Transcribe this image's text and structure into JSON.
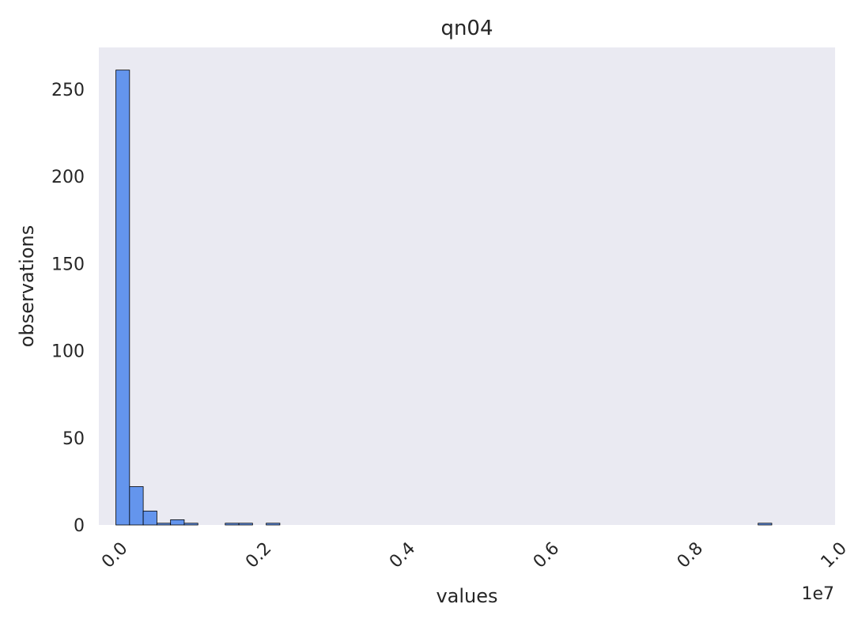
{
  "chart_data": {
    "type": "bar",
    "title": "qn04",
    "xlabel": "values",
    "ylabel": "observations",
    "x_offset_label": "1e7",
    "xlim": [
      -0.0237,
      1.0
    ],
    "ylim": [
      0,
      274
    ],
    "x_ticks": [
      0.0,
      0.2,
      0.4,
      0.6,
      0.8,
      1.0
    ],
    "x_tick_labels": [
      "0.0",
      "0.2",
      "0.4",
      "0.6",
      "0.8",
      "1.0"
    ],
    "y_ticks": [
      0,
      50,
      100,
      150,
      200,
      250
    ],
    "y_tick_labels": [
      "0",
      "50",
      "100",
      "150",
      "200",
      "250"
    ],
    "grid": false,
    "bin_start": 0.0,
    "bin_width": 0.019,
    "values": [
      261,
      22,
      8,
      1,
      3,
      1,
      0,
      0,
      1,
      1,
      0,
      1,
      0,
      0,
      0,
      0,
      0,
      0,
      0,
      0,
      0,
      0,
      0,
      0,
      0,
      0,
      0,
      0,
      0,
      0,
      0,
      0,
      0,
      0,
      0,
      0,
      0,
      0,
      0,
      0,
      0,
      0,
      0,
      0,
      0,
      0,
      0,
      1
    ],
    "colors": {
      "bar_fill": "#6495ED",
      "bar_edge": "#000000",
      "plot_background": "#EAEAF2",
      "text": "#262626"
    }
  }
}
